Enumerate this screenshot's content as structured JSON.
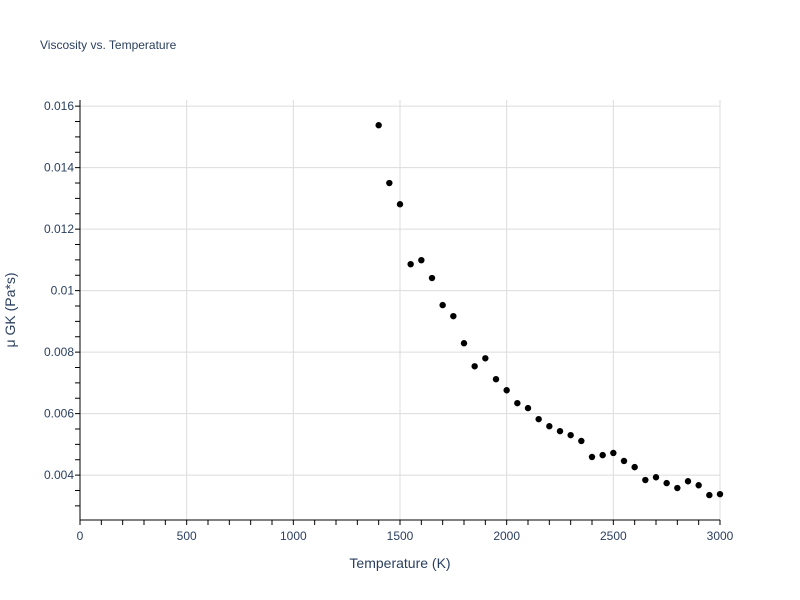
{
  "chart_data": {
    "type": "scatter",
    "title": "Viscosity vs. Temperature",
    "xlabel": "Temperature (K)",
    "ylabel": "μ GK (Pa*s)",
    "xlim": [
      0,
      3000
    ],
    "ylim": [
      0.00254,
      0.0162
    ],
    "grid": true,
    "marker_color": "#000000",
    "x_ticks": [
      {
        "v": 0,
        "label": "0"
      },
      {
        "v": 500,
        "label": "500"
      },
      {
        "v": 1000,
        "label": "1000"
      },
      {
        "v": 1500,
        "label": "1500"
      },
      {
        "v": 2000,
        "label": "2000"
      },
      {
        "v": 2500,
        "label": "2500"
      },
      {
        "v": 3000,
        "label": "3000"
      }
    ],
    "y_ticks": [
      {
        "v": 0.004,
        "label": "0.004"
      },
      {
        "v": 0.006,
        "label": "0.006"
      },
      {
        "v": 0.008,
        "label": "0.008"
      },
      {
        "v": 0.01,
        "label": "0.01"
      },
      {
        "v": 0.012,
        "label": "0.012"
      },
      {
        "v": 0.014,
        "label": "0.014"
      },
      {
        "v": 0.016,
        "label": "0.016"
      }
    ],
    "x": [
      1400,
      1450,
      1500,
      1550,
      1600,
      1650,
      1700,
      1750,
      1800,
      1850,
      1900,
      1950,
      2000,
      2050,
      2100,
      2150,
      2200,
      2250,
      2300,
      2350,
      2400,
      2450,
      2500,
      2550,
      2600,
      2650,
      2700,
      2750,
      2800,
      2850,
      2900,
      2950,
      3000
    ],
    "y": [
      0.01538,
      0.0135,
      0.01281,
      0.01086,
      0.01099,
      0.01041,
      0.00953,
      0.00917,
      0.00829,
      0.00754,
      0.0078,
      0.00712,
      0.00676,
      0.00634,
      0.00618,
      0.00582,
      0.00559,
      0.00543,
      0.0053,
      0.00511,
      0.00459,
      0.00465,
      0.00472,
      0.00446,
      0.00426,
      0.00384,
      0.00393,
      0.00374,
      0.00358,
      0.0038,
      0.00367,
      0.00335,
      0.00338
    ]
  }
}
